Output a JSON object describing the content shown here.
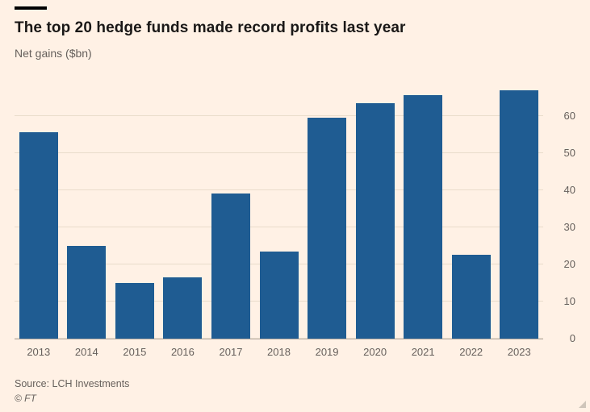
{
  "header": {
    "title": "The top 20 hedge funds made record profits last year",
    "subtitle": "Net gains ($bn)"
  },
  "footer": {
    "source": "Source: LCH Investments",
    "copyright": "© FT"
  },
  "colors": {
    "background": "#fff1e5",
    "bar": "#1f5c92",
    "gridline": "#e9dccb",
    "baseline": "#b5aba1",
    "text_dark": "#1a1817",
    "text_muted": "#66605c",
    "title_rule": "#000000"
  },
  "chart_data": {
    "type": "bar",
    "title": "The top 20 hedge funds made record profits last year",
    "subtitle": "Net gains ($bn)",
    "categories": [
      "2013",
      "2014",
      "2015",
      "2016",
      "2017",
      "2018",
      "2019",
      "2020",
      "2021",
      "2022",
      "2023"
    ],
    "values": [
      55.5,
      25,
      15,
      16.5,
      39,
      23.5,
      59.5,
      63.5,
      65.5,
      22.5,
      67
    ],
    "xlabel": "",
    "ylabel": "Net gains ($bn)",
    "ylim": [
      0,
      69.5
    ],
    "yticks": [
      0,
      10,
      20,
      30,
      40,
      50,
      60
    ],
    "grid": true,
    "axis_side": "right",
    "legend": "none",
    "source": "Source: LCH Investments"
  }
}
